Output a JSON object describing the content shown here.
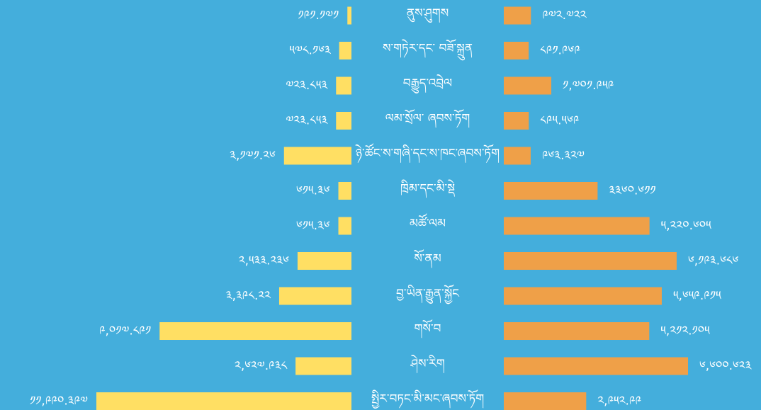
{
  "chart_data": {
    "type": "butterfly",
    "categories": [
      "ནུས་ཤུགས",
      "ས་གཏེར་དང་ བཟོ་སྐྲུན",
      "བརྒྱུད་འབྲེལ",
      "ལམ་སྲོལ་ ཞབས་ཏོག",
      "ཉེ་ཚོང་ས་གཞི་དང་ས་ཁང་ཞབས་ཏོག",
      "ཁྲིམ་དང་མི་སྡེ",
      "མཚོ་ལམ",
      "སོ་ནམ",
      "བྱ་ཡིན་རྒྱུན་སྐྱོང",
      "གསོ་བ",
      "ཤེས་རིག",
      "སྤྱིར་བཏང་མི་མང་ཞབས་ཏོག"
    ],
    "series": [
      {
        "color": "#FFDF63",
        "values": [
          191.171,
          578.163,
          723.853,
          723.853,
          3171.26,
          615.36,
          615.36,
          2533.236,
          3398.22,
          9017.891,
          2627.938,
          11990.397
        ],
        "value_labels": [
          "༡༩༡.༡༧༡",
          "༥༧༨.༡༦༣",
          "༧༢༣.༨༥༣",
          "༧༢༣.༨༥༣",
          "༣,༡༧༡.༢༦",
          "༦༡༥.༣༦",
          "༦༡༥.༣༦",
          "༢,༥༣༣.༢༣༦",
          "༣,༣༩༨.༢༢",
          "༩,༠༡༧.༨༩༡",
          "༢,༦༢༧.༩༣༨",
          "༡༡,༩༩༠.༣༩༧"
        ]
      },
      {
        "color": "#EFA048",
        "values": [
          972.722,
          891.969,
          1701.959,
          895.569,
          963.327,
          3360.611,
          5220.605,
          6193.686,
          5659.915,
          5212.105,
          6600.623,
          2952.99
        ],
        "value_labels": [
          "༩༧༢.༧༢༢",
          "༨༩༡.༩༦༩",
          "༡,༧༠༡.༩༥༩",
          "༨༩༥.༥༦༩",
          "༩༦༣.༣༢༧",
          "༣༣༦༠.༦༡༡",
          "༥,༢༢༠.༦༠༥",
          "༦,༡༩༣.༦༨༦",
          "༥,༦༥༩.༩༡༥",
          "༥,༢༡༢.༡༠༥",
          "༦,༦༠༠.༦༢༣",
          "༢,༩༥༢.༩༩"
        ]
      }
    ]
  }
}
